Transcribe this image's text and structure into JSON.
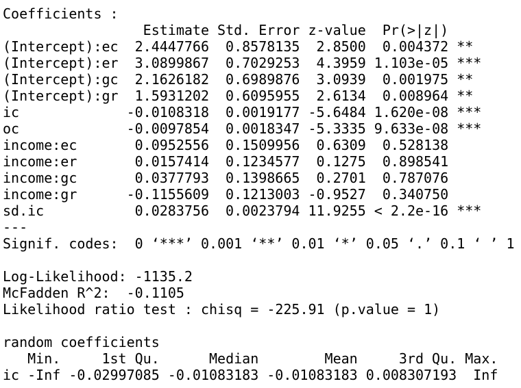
{
  "coefficients_title": "Coefficients :",
  "table": {
    "header": [
      "Estimate",
      "Std. Error",
      "z-value",
      "Pr(>|z|)"
    ],
    "rows": [
      {
        "name": "(Intercept):ec",
        "cells": [
          "2.4447766",
          "0.8578135",
          "2.8500",
          "0.004372"
        ],
        "signif": "**"
      },
      {
        "name": "(Intercept):er",
        "cells": [
          "3.0899867",
          "0.7029253",
          "4.3959",
          "1.103e-05"
        ],
        "signif": "***"
      },
      {
        "name": "(Intercept):gc",
        "cells": [
          "2.1626182",
          "0.6989876",
          "3.0939",
          "0.001975"
        ],
        "signif": "**"
      },
      {
        "name": "(Intercept):gr",
        "cells": [
          "1.5931202",
          "0.6095955",
          "2.6134",
          "0.008964"
        ],
        "signif": "**"
      },
      {
        "name": "ic",
        "cells": [
          "-0.0108318",
          "0.0019177",
          "-5.6484",
          "1.620e-08"
        ],
        "signif": "***"
      },
      {
        "name": "oc",
        "cells": [
          "-0.0097854",
          "0.0018347",
          "-5.3335",
          "9.633e-08"
        ],
        "signif": "***"
      },
      {
        "name": "income:ec",
        "cells": [
          "0.0952556",
          "0.1509956",
          "0.6309",
          "0.528138"
        ]
      },
      {
        "name": "income:er",
        "cells": [
          "0.0157414",
          "0.1234577",
          "0.1275",
          "0.898541"
        ]
      },
      {
        "name": "income:gc",
        "cells": [
          "0.0377793",
          "0.1398665",
          "0.2701",
          "0.787076"
        ]
      },
      {
        "name": "income:gr",
        "cells": [
          "-0.1155609",
          "0.1213003",
          "-0.9527",
          "0.340750"
        ]
      },
      {
        "name": "sd.ic",
        "cells": [
          "0.0283756",
          "0.0023794",
          "11.9255",
          "< 2.2e-16"
        ],
        "signif": "***"
      }
    ]
  },
  "separator": "---",
  "signif_codes": "Signif. codes:  0 ‘***’ 0.001 ‘**’ 0.01 ‘*’ 0.05 ‘.’ 0.1 ‘ ’ 1",
  "log_likelihood": "Log-Likelihood: -1135.2",
  "mcfadden": "McFadden R^2:  -0.1105",
  "lr_test": "Likelihood ratio test : chisq = -225.91 (p.value = 1)",
  "random_title": "random coefficients",
  "random_table": {
    "header": [
      "Min.",
      "1st Qu.",
      "Median",
      "Mean",
      "3rd Qu.",
      "Max."
    ],
    "rows": [
      {
        "name": "ic",
        "cells": [
          "-Inf",
          "-0.02997085",
          "-0.01083183",
          "-0.01083183",
          "0.008307193",
          "Inf"
        ]
      }
    ]
  }
}
